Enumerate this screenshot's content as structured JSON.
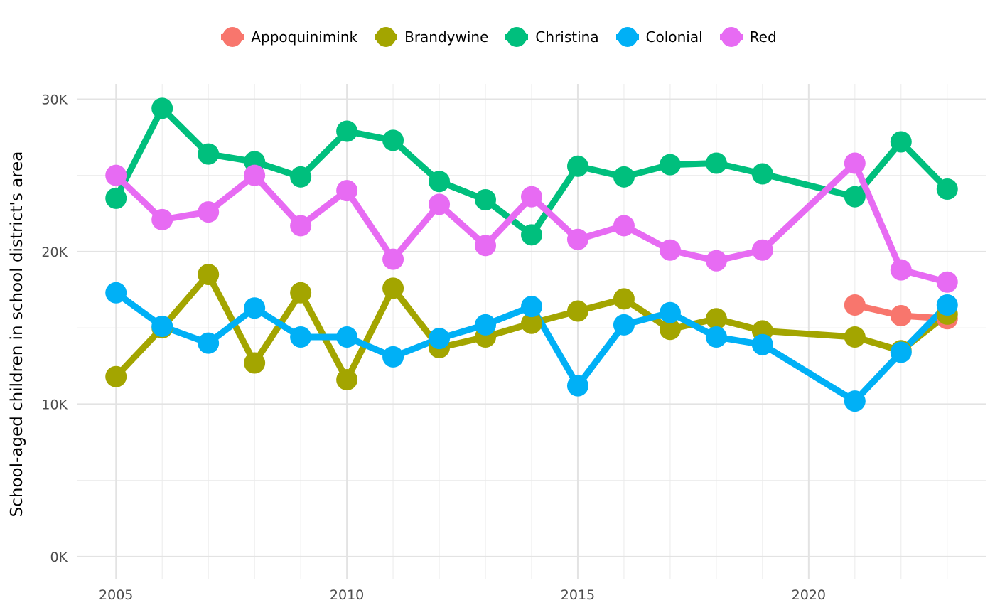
{
  "chart_data": {
    "type": "line",
    "title": "",
    "xlabel": "",
    "ylabel": "School-aged children in school district's area",
    "xlim": [
      2004.15,
      2023.85
    ],
    "ylim": [
      -1500,
      31000
    ],
    "x_ticks": [
      2005,
      2010,
      2015,
      2020
    ],
    "x_tick_labels": [
      "2005",
      "2010",
      "2015",
      "2020"
    ],
    "y_ticks": [
      0,
      10000,
      20000,
      30000
    ],
    "y_tick_labels": [
      "0K",
      "10K",
      "20K",
      "30K"
    ],
    "grid": true,
    "legend_position": "top",
    "series": [
      {
        "name": "Appoquinimink",
        "color": "#F8766D",
        "points": [
          [
            2021,
            16500
          ],
          [
            2022,
            15800
          ],
          [
            2023,
            15600
          ]
        ]
      },
      {
        "name": "Brandywine",
        "color": "#A3A500",
        "points": [
          [
            2005,
            11800
          ],
          [
            2006,
            15000
          ],
          [
            2007,
            18500
          ],
          [
            2008,
            12700
          ],
          [
            2009,
            17300
          ],
          [
            2010,
            11600
          ],
          [
            2011,
            17600
          ],
          [
            2012,
            13700
          ],
          [
            2013,
            14400
          ],
          [
            2014,
            15300
          ],
          [
            2015,
            16100
          ],
          [
            2016,
            16900
          ],
          [
            2017,
            14900
          ],
          [
            2018,
            15600
          ],
          [
            2019,
            14800
          ],
          [
            2021,
            14400
          ],
          [
            2022,
            13500
          ],
          [
            2023,
            15900
          ]
        ]
      },
      {
        "name": "Christina",
        "color": "#00BF7D",
        "points": [
          [
            2005,
            23500
          ],
          [
            2006,
            29400
          ],
          [
            2007,
            26400
          ],
          [
            2008,
            25900
          ],
          [
            2009,
            24900
          ],
          [
            2010,
            27900
          ],
          [
            2011,
            27300
          ],
          [
            2012,
            24600
          ],
          [
            2013,
            23400
          ],
          [
            2014,
            21100
          ],
          [
            2015,
            25600
          ],
          [
            2016,
            24900
          ],
          [
            2017,
            25700
          ],
          [
            2018,
            25800
          ],
          [
            2019,
            25100
          ],
          [
            2021,
            23600
          ],
          [
            2022,
            27200
          ],
          [
            2023,
            24100
          ]
        ]
      },
      {
        "name": "Colonial",
        "color": "#00B0F6",
        "points": [
          [
            2005,
            17300
          ],
          [
            2006,
            15100
          ],
          [
            2007,
            14000
          ],
          [
            2008,
            16300
          ],
          [
            2009,
            14400
          ],
          [
            2010,
            14400
          ],
          [
            2011,
            13100
          ],
          [
            2012,
            14300
          ],
          [
            2013,
            15200
          ],
          [
            2014,
            16400
          ],
          [
            2015,
            11200
          ],
          [
            2016,
            15200
          ],
          [
            2017,
            16000
          ],
          [
            2018,
            14400
          ],
          [
            2019,
            13900
          ],
          [
            2021,
            10200
          ],
          [
            2022,
            13400
          ],
          [
            2023,
            16500
          ]
        ]
      },
      {
        "name": "Red",
        "color": "#E76BF3",
        "points": [
          [
            2005,
            25000
          ],
          [
            2006,
            22100
          ],
          [
            2007,
            22600
          ],
          [
            2008,
            25000
          ],
          [
            2009,
            21700
          ],
          [
            2010,
            24000
          ],
          [
            2011,
            19500
          ],
          [
            2012,
            23100
          ],
          [
            2013,
            20400
          ],
          [
            2014,
            23600
          ],
          [
            2015,
            20800
          ],
          [
            2016,
            21700
          ],
          [
            2017,
            20100
          ],
          [
            2018,
            19400
          ],
          [
            2019,
            20100
          ],
          [
            2021,
            25800
          ],
          [
            2022,
            18800
          ],
          [
            2023,
            18000
          ]
        ]
      }
    ]
  }
}
